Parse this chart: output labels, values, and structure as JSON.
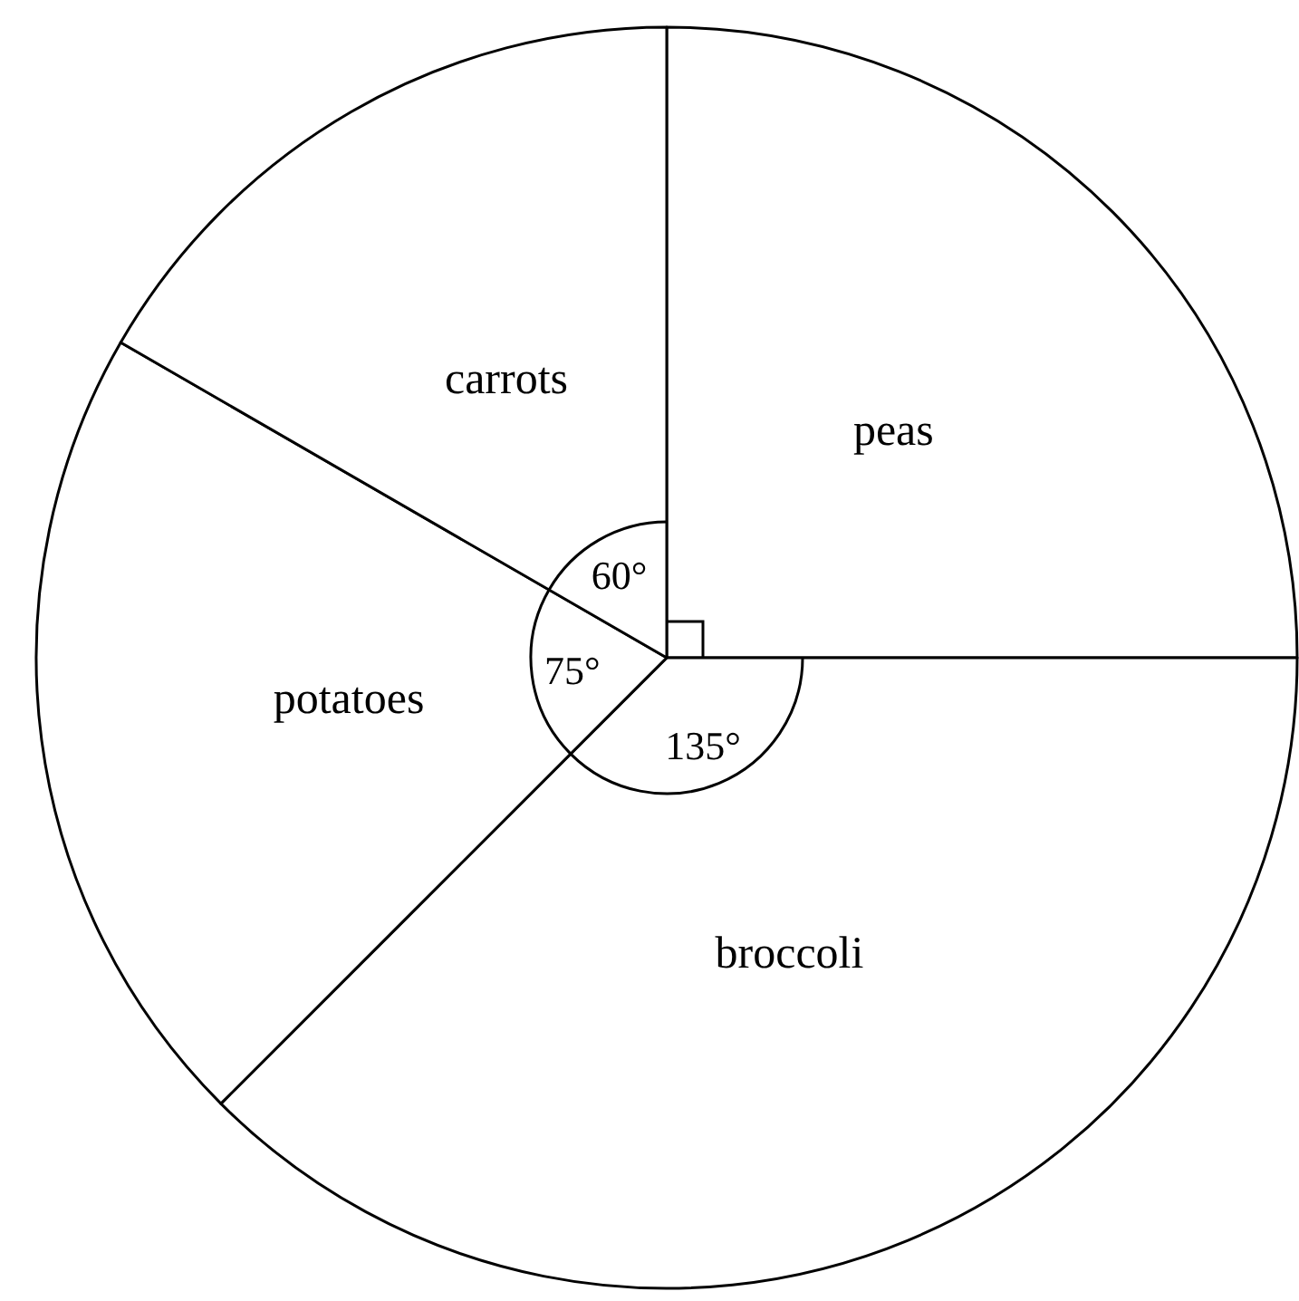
{
  "chart_data": {
    "type": "pie",
    "categories": [
      "peas",
      "broccoli",
      "potatoes",
      "carrots"
    ],
    "values": [
      90,
      135,
      75,
      60
    ],
    "value_labels": [
      null,
      "135°",
      "75°",
      "60°"
    ],
    "colors": [
      "#ffffff",
      "#ffffff",
      "#ffffff",
      "#ffffff"
    ],
    "legend": false
  }
}
